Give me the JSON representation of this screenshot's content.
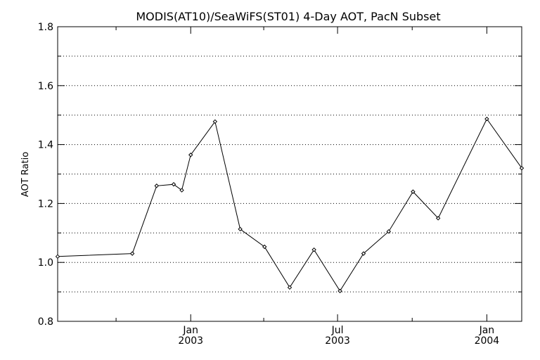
{
  "chart_data": {
    "type": "line",
    "title": "MODIS(AT10)/SeaWiFS(ST01) 4-Day AOT, PacN Subset",
    "xlabel": "",
    "ylabel": "AOT Ratio",
    "ylim": [
      0.8,
      1.8
    ],
    "xlim": [
      "2002-07-21",
      "2004-02-13"
    ],
    "yticks": [
      "0.8",
      "1.0",
      "1.2",
      "1.4",
      "1.6",
      "1.8"
    ],
    "xticks": [
      {
        "date": "2003-01-01",
        "month": "Jan",
        "year": "2003"
      },
      {
        "date": "2003-07-01",
        "month": "Jul",
        "year": "2003"
      },
      {
        "date": "2004-01-01",
        "month": "Jan",
        "year": "2004"
      }
    ],
    "grid": "horizontal dotted",
    "legend": "none",
    "line_color": "#000000",
    "series": [
      {
        "x": [
          "2002-07-21",
          "2002-10-21",
          "2002-11-20",
          "2002-12-11",
          "2002-12-21",
          "2003-01-01",
          "2003-01-31",
          "2003-03-03",
          "2003-04-02",
          "2003-05-03",
          "2003-06-02",
          "2003-07-04",
          "2003-08-02",
          "2003-09-02",
          "2003-10-02",
          "2003-11-02",
          "2004-01-01",
          "2004-02-13"
        ],
        "y": [
          1.02,
          1.03,
          1.26,
          1.265,
          1.245,
          1.365,
          1.478,
          1.113,
          1.053,
          0.915,
          1.043,
          0.903,
          1.03,
          1.105,
          1.24,
          1.15,
          1.487,
          1.32
        ]
      }
    ]
  }
}
